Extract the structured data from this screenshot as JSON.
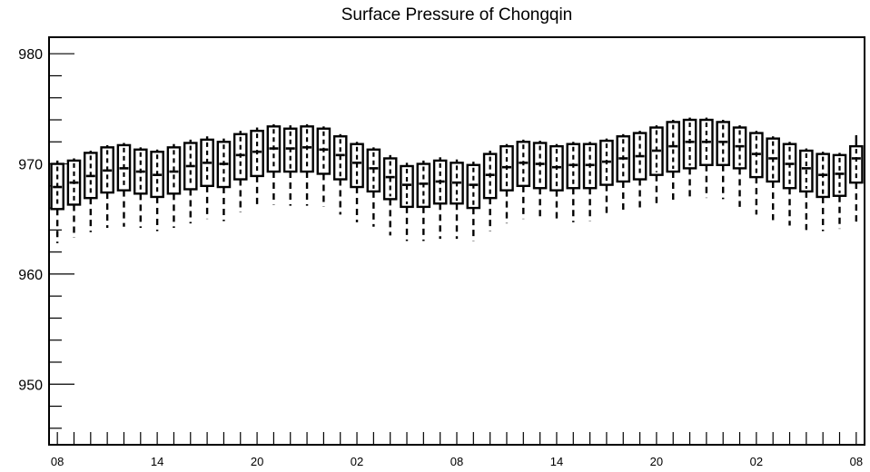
{
  "chart_data": {
    "type": "box",
    "title": "Surface Pressure of Chongqin",
    "xlabel": "",
    "ylabel": "",
    "ylim": [
      944.5,
      981.5
    ],
    "yticks": [
      950,
      960,
      970,
      980
    ],
    "y_minor_step": 2,
    "x_hours": [
      8,
      9,
      10,
      11,
      12,
      13,
      14,
      15,
      16,
      17,
      18,
      19,
      20,
      21,
      22,
      23,
      0,
      1,
      2,
      3,
      4,
      5,
      6,
      7,
      8,
      9,
      10,
      11,
      12,
      13,
      14,
      15,
      16,
      17,
      18,
      19,
      20,
      21,
      22,
      23,
      0,
      1,
      2,
      3,
      4,
      5,
      6,
      7,
      8
    ],
    "x_tick_labels": [
      "08",
      "14",
      "20",
      "02",
      "08",
      "14",
      "20",
      "02",
      "08"
    ],
    "x_tick_label_positions": [
      0,
      6,
      12,
      18,
      24,
      30,
      36,
      42,
      48
    ],
    "grid": false,
    "boxes": {
      "q1": [
        965.9,
        966.3,
        966.9,
        967.4,
        967.6,
        967.3,
        967.0,
        967.3,
        967.7,
        968.0,
        967.9,
        968.6,
        968.9,
        969.3,
        969.3,
        969.3,
        969.1,
        968.6,
        967.9,
        967.5,
        966.8,
        966.1,
        966.1,
        966.4,
        966.4,
        966.0,
        966.9,
        967.6,
        968.0,
        967.8,
        967.6,
        967.8,
        967.8,
        968.1,
        968.4,
        968.6,
        969.0,
        969.3,
        969.6,
        969.9,
        969.9,
        969.6,
        968.8,
        968.4,
        967.8,
        967.5,
        967.0,
        967.1,
        968.3
      ],
      "median": [
        967.9,
        968.3,
        968.9,
        969.4,
        969.6,
        969.3,
        969.0,
        969.3,
        969.8,
        970.1,
        970.0,
        970.8,
        971.1,
        971.4,
        971.4,
        971.5,
        971.3,
        970.8,
        970.1,
        969.6,
        968.8,
        968.1,
        968.2,
        968.4,
        968.3,
        968.1,
        969.0,
        969.7,
        970.1,
        970.0,
        969.7,
        969.9,
        969.9,
        970.2,
        970.5,
        970.7,
        971.2,
        971.6,
        972.0,
        972.0,
        972.0,
        971.6,
        970.9,
        970.5,
        970.0,
        969.6,
        969.0,
        969.1,
        970.5
      ],
      "q3": [
        970.0,
        970.3,
        971.0,
        971.5,
        971.7,
        971.3,
        971.1,
        971.5,
        971.9,
        972.2,
        972.0,
        972.7,
        973.0,
        973.4,
        973.2,
        973.4,
        973.2,
        972.5,
        971.8,
        971.3,
        970.5,
        969.8,
        970.0,
        970.3,
        970.1,
        969.9,
        970.9,
        971.6,
        972.0,
        971.9,
        971.6,
        971.8,
        971.8,
        972.1,
        972.5,
        972.8,
        973.3,
        973.8,
        974.0,
        974.0,
        973.8,
        973.3,
        972.8,
        972.3,
        971.8,
        971.2,
        970.9,
        970.8,
        971.6
      ],
      "whisker_low": [
        962.8,
        963.3,
        963.8,
        964.2,
        964.3,
        964.2,
        963.9,
        964.2,
        964.6,
        965.0,
        964.8,
        965.6,
        966.0,
        966.3,
        966.2,
        966.2,
        966.1,
        965.4,
        964.7,
        964.3,
        963.5,
        963.0,
        963.0,
        963.2,
        963.2,
        963.0,
        963.9,
        964.6,
        965.0,
        965.0,
        964.7,
        964.7,
        964.8,
        965.2,
        965.5,
        965.9,
        966.3,
        966.7,
        966.9,
        966.9,
        966.8,
        966.1,
        965.4,
        964.9,
        964.4,
        964.0,
        963.9,
        964.1,
        964.7
      ],
      "whisker_high": [
        970.3,
        970.5,
        971.2,
        971.7,
        971.9,
        971.5,
        971.3,
        971.8,
        972.2,
        972.5,
        972.3,
        973.0,
        973.3,
        973.6,
        973.5,
        973.6,
        973.4,
        972.7,
        972.0,
        971.5,
        970.8,
        970.1,
        970.3,
        970.6,
        970.4,
        970.2,
        971.2,
        971.8,
        972.2,
        972.1,
        971.8,
        972.0,
        972.0,
        972.3,
        972.7,
        973.0,
        973.5,
        974.0,
        974.2,
        974.2,
        974.0,
        973.5,
        973.0,
        972.5,
        972.0,
        971.4,
        971.1,
        971.0,
        972.6
      ]
    }
  }
}
